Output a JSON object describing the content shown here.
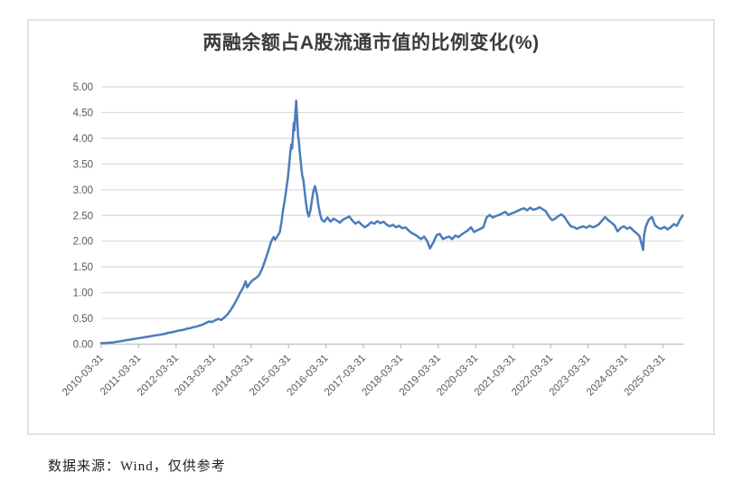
{
  "chart": {
    "title": "两融余额占A股流通市值的比例变化(%)",
    "source_note": "数据来源：Wind，仅供参考",
    "colors": {
      "line": "#4C7CBA",
      "gridline": "#D9D9D9",
      "axis": "#BFBFBF",
      "tick_label": "#595959",
      "title": "#3B3B3B",
      "border": "#E2E2E2",
      "background": "#FFFFFF"
    }
  },
  "chart_data": {
    "type": "line",
    "title": "两融余额占A股流通市值的比例变化(%)",
    "xlabel": "",
    "ylabel": "",
    "ylim": [
      0,
      5
    ],
    "ytick_step": 0.5,
    "yticks": [
      "0.00",
      "0.50",
      "1.00",
      "1.50",
      "2.00",
      "2.50",
      "3.00",
      "3.50",
      "4.00",
      "4.50",
      "5.00"
    ],
    "x_ticks": [
      "2010-03-31",
      "2011-03-31",
      "2012-03-31",
      "2013-03-31",
      "2014-03-31",
      "2015-03-31",
      "2016-03-31",
      "2017-03-31",
      "2018-03-31",
      "2019-03-31",
      "2020-03-31",
      "2021-03-31",
      "2022-03-31",
      "2023-03-31",
      "2024-03-31",
      "2025-03-31"
    ],
    "x_tick_rotation": -45,
    "grid": "horizontal",
    "legend": "none",
    "series": [
      {
        "color": "#4C7CBA",
        "points": [
          [
            "2010-03-31",
            0.02
          ],
          [
            "2010-04-15",
            0.02
          ],
          [
            "2010-05-15",
            0.02
          ],
          [
            "2010-06-15",
            0.03
          ],
          [
            "2010-07-15",
            0.03
          ],
          [
            "2010-08-15",
            0.04
          ],
          [
            "2010-09-15",
            0.05
          ],
          [
            "2010-10-15",
            0.06
          ],
          [
            "2010-11-15",
            0.07
          ],
          [
            "2010-12-15",
            0.08
          ],
          [
            "2011-01-15",
            0.09
          ],
          [
            "2011-02-15",
            0.1
          ],
          [
            "2011-03-15",
            0.11
          ],
          [
            "2011-04-15",
            0.12
          ],
          [
            "2011-05-15",
            0.13
          ],
          [
            "2011-06-15",
            0.14
          ],
          [
            "2011-07-15",
            0.15
          ],
          [
            "2011-08-15",
            0.16
          ],
          [
            "2011-09-15",
            0.17
          ],
          [
            "2011-10-15",
            0.18
          ],
          [
            "2011-11-15",
            0.19
          ],
          [
            "2011-12-15",
            0.2
          ],
          [
            "2012-01-15",
            0.22
          ],
          [
            "2012-02-15",
            0.23
          ],
          [
            "2012-03-15",
            0.24
          ],
          [
            "2012-04-15",
            0.26
          ],
          [
            "2012-05-15",
            0.27
          ],
          [
            "2012-06-15",
            0.28
          ],
          [
            "2012-07-15",
            0.3
          ],
          [
            "2012-08-15",
            0.31
          ],
          [
            "2012-09-15",
            0.33
          ],
          [
            "2012-10-15",
            0.34
          ],
          [
            "2012-11-15",
            0.36
          ],
          [
            "2012-12-15",
            0.38
          ],
          [
            "2013-01-15",
            0.41
          ],
          [
            "2013-02-15",
            0.44
          ],
          [
            "2013-03-15",
            0.43
          ],
          [
            "2013-04-15",
            0.46
          ],
          [
            "2013-05-15",
            0.49
          ],
          [
            "2013-06-15",
            0.47
          ],
          [
            "2013-07-15",
            0.52
          ],
          [
            "2013-08-15",
            0.58
          ],
          [
            "2013-09-15",
            0.66
          ],
          [
            "2013-10-15",
            0.76
          ],
          [
            "2013-11-15",
            0.87
          ],
          [
            "2013-12-15",
            0.99
          ],
          [
            "2014-01-15",
            1.1
          ],
          [
            "2014-02-08",
            1.22
          ],
          [
            "2014-02-24",
            1.1
          ],
          [
            "2014-03-15",
            1.17
          ],
          [
            "2014-04-15",
            1.24
          ],
          [
            "2014-05-15",
            1.28
          ],
          [
            "2014-06-15",
            1.33
          ],
          [
            "2014-07-15",
            1.45
          ],
          [
            "2014-08-15",
            1.62
          ],
          [
            "2014-09-15",
            1.8
          ],
          [
            "2014-10-15",
            2.0
          ],
          [
            "2014-11-08",
            2.08
          ],
          [
            "2014-11-24",
            2.03
          ],
          [
            "2014-12-15",
            2.1
          ],
          [
            "2015-01-08",
            2.18
          ],
          [
            "2015-01-24",
            2.38
          ],
          [
            "2015-02-08",
            2.6
          ],
          [
            "2015-02-24",
            2.78
          ],
          [
            "2015-03-08",
            2.98
          ],
          [
            "2015-03-24",
            3.22
          ],
          [
            "2015-04-08",
            3.5
          ],
          [
            "2015-04-18",
            3.72
          ],
          [
            "2015-04-28",
            3.88
          ],
          [
            "2015-05-06",
            3.8
          ],
          [
            "2015-05-14",
            4.05
          ],
          [
            "2015-05-22",
            4.3
          ],
          [
            "2015-05-28",
            4.15
          ],
          [
            "2015-06-05",
            4.45
          ],
          [
            "2015-06-15",
            4.73
          ],
          [
            "2015-06-24",
            4.4
          ],
          [
            "2015-07-03",
            4.05
          ],
          [
            "2015-07-10",
            3.95
          ],
          [
            "2015-07-20",
            3.72
          ],
          [
            "2015-08-01",
            3.5
          ],
          [
            "2015-08-12",
            3.28
          ],
          [
            "2015-08-24",
            3.2
          ],
          [
            "2015-09-07",
            2.95
          ],
          [
            "2015-09-19",
            2.75
          ],
          [
            "2015-10-01",
            2.58
          ],
          [
            "2015-10-16",
            2.48
          ],
          [
            "2015-11-01",
            2.6
          ],
          [
            "2015-11-16",
            2.8
          ],
          [
            "2015-12-01",
            2.98
          ],
          [
            "2015-12-16",
            3.07
          ],
          [
            "2016-01-05",
            2.9
          ],
          [
            "2016-01-20",
            2.68
          ],
          [
            "2016-02-05",
            2.52
          ],
          [
            "2016-02-20",
            2.42
          ],
          [
            "2016-03-15",
            2.38
          ],
          [
            "2016-04-15",
            2.46
          ],
          [
            "2016-05-15",
            2.38
          ],
          [
            "2016-06-15",
            2.44
          ],
          [
            "2016-07-15",
            2.4
          ],
          [
            "2016-08-15",
            2.36
          ],
          [
            "2016-09-15",
            2.42
          ],
          [
            "2016-10-15",
            2.45
          ],
          [
            "2016-11-15",
            2.48
          ],
          [
            "2016-12-15",
            2.4
          ],
          [
            "2017-01-15",
            2.34
          ],
          [
            "2017-02-15",
            2.38
          ],
          [
            "2017-03-15",
            2.32
          ],
          [
            "2017-04-15",
            2.27
          ],
          [
            "2017-05-15",
            2.31
          ],
          [
            "2017-06-15",
            2.37
          ],
          [
            "2017-07-15",
            2.34
          ],
          [
            "2017-08-15",
            2.39
          ],
          [
            "2017-09-15",
            2.35
          ],
          [
            "2017-10-15",
            2.38
          ],
          [
            "2017-11-15",
            2.32
          ],
          [
            "2017-12-15",
            2.29
          ],
          [
            "2018-01-15",
            2.32
          ],
          [
            "2018-02-15",
            2.27
          ],
          [
            "2018-03-15",
            2.3
          ],
          [
            "2018-04-15",
            2.25
          ],
          [
            "2018-05-15",
            2.27
          ],
          [
            "2018-06-15",
            2.21
          ],
          [
            "2018-07-15",
            2.16
          ],
          [
            "2018-08-15",
            2.13
          ],
          [
            "2018-09-15",
            2.09
          ],
          [
            "2018-10-15",
            2.04
          ],
          [
            "2018-11-15",
            2.09
          ],
          [
            "2018-12-15",
            2.0
          ],
          [
            "2019-01-10",
            1.86
          ],
          [
            "2019-02-15",
            1.98
          ],
          [
            "2019-03-15",
            2.12
          ],
          [
            "2019-04-15",
            2.14
          ],
          [
            "2019-05-15",
            2.04
          ],
          [
            "2019-06-15",
            2.07
          ],
          [
            "2019-07-15",
            2.09
          ],
          [
            "2019-08-15",
            2.04
          ],
          [
            "2019-09-15",
            2.11
          ],
          [
            "2019-10-15",
            2.08
          ],
          [
            "2019-11-15",
            2.13
          ],
          [
            "2019-12-15",
            2.17
          ],
          [
            "2020-01-15",
            2.21
          ],
          [
            "2020-02-15",
            2.27
          ],
          [
            "2020-03-15",
            2.18
          ],
          [
            "2020-04-15",
            2.21
          ],
          [
            "2020-05-15",
            2.24
          ],
          [
            "2020-06-15",
            2.27
          ],
          [
            "2020-07-15",
            2.46
          ],
          [
            "2020-08-15",
            2.51
          ],
          [
            "2020-09-15",
            2.46
          ],
          [
            "2020-10-15",
            2.49
          ],
          [
            "2020-11-15",
            2.51
          ],
          [
            "2020-12-15",
            2.54
          ],
          [
            "2021-01-15",
            2.57
          ],
          [
            "2021-02-15",
            2.51
          ],
          [
            "2021-03-15",
            2.54
          ],
          [
            "2021-04-15",
            2.56
          ],
          [
            "2021-05-15",
            2.59
          ],
          [
            "2021-06-15",
            2.62
          ],
          [
            "2021-07-15",
            2.64
          ],
          [
            "2021-08-15",
            2.6
          ],
          [
            "2021-09-15",
            2.65
          ],
          [
            "2021-10-15",
            2.61
          ],
          [
            "2021-11-15",
            2.63
          ],
          [
            "2021-12-15",
            2.66
          ],
          [
            "2022-01-15",
            2.62
          ],
          [
            "2022-02-15",
            2.58
          ],
          [
            "2022-03-15",
            2.48
          ],
          [
            "2022-04-15",
            2.41
          ],
          [
            "2022-05-15",
            2.44
          ],
          [
            "2022-06-15",
            2.49
          ],
          [
            "2022-07-15",
            2.52
          ],
          [
            "2022-08-15",
            2.47
          ],
          [
            "2022-09-15",
            2.37
          ],
          [
            "2022-10-15",
            2.29
          ],
          [
            "2022-11-15",
            2.27
          ],
          [
            "2022-12-15",
            2.24
          ],
          [
            "2023-01-15",
            2.27
          ],
          [
            "2023-02-15",
            2.29
          ],
          [
            "2023-03-15",
            2.26
          ],
          [
            "2023-04-15",
            2.3
          ],
          [
            "2023-05-15",
            2.27
          ],
          [
            "2023-06-15",
            2.29
          ],
          [
            "2023-07-15",
            2.33
          ],
          [
            "2023-08-15",
            2.4
          ],
          [
            "2023-09-15",
            2.47
          ],
          [
            "2023-10-15",
            2.41
          ],
          [
            "2023-11-15",
            2.36
          ],
          [
            "2023-12-15",
            2.31
          ],
          [
            "2024-01-15",
            2.19
          ],
          [
            "2024-02-15",
            2.26
          ],
          [
            "2024-03-15",
            2.29
          ],
          [
            "2024-04-15",
            2.24
          ],
          [
            "2024-05-15",
            2.27
          ],
          [
            "2024-06-15",
            2.21
          ],
          [
            "2024-07-15",
            2.16
          ],
          [
            "2024-08-15",
            2.1
          ],
          [
            "2024-09-20",
            1.83
          ],
          [
            "2024-09-28",
            2.1
          ],
          [
            "2024-10-15",
            2.28
          ],
          [
            "2024-11-15",
            2.42
          ],
          [
            "2024-12-15",
            2.47
          ],
          [
            "2025-01-15",
            2.31
          ],
          [
            "2025-02-15",
            2.26
          ],
          [
            "2025-03-15",
            2.24
          ],
          [
            "2025-04-15",
            2.28
          ],
          [
            "2025-05-15",
            2.23
          ],
          [
            "2025-06-15",
            2.27
          ],
          [
            "2025-07-15",
            2.33
          ],
          [
            "2025-08-15",
            2.3
          ],
          [
            "2025-09-15",
            2.42
          ],
          [
            "2025-10-10",
            2.5
          ]
        ]
      }
    ]
  }
}
